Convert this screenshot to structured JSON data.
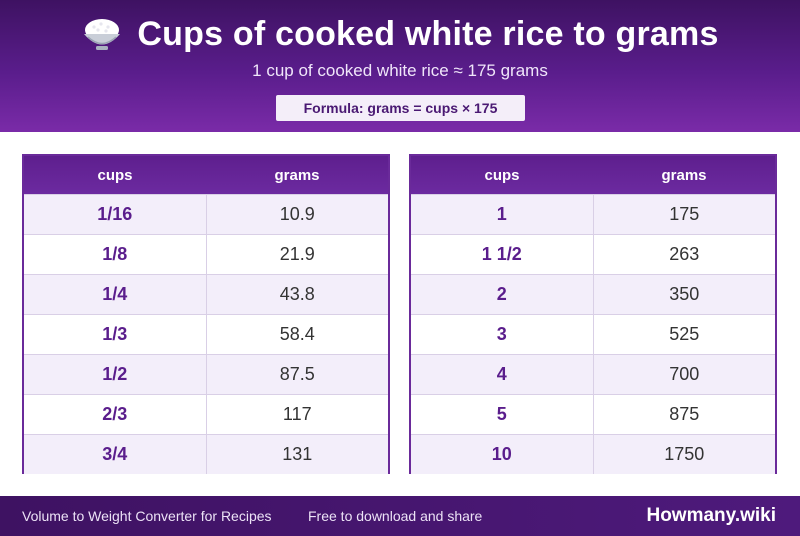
{
  "header": {
    "icon": "rice-bowl-icon",
    "title": "Cups of cooked white rice to grams",
    "subtitle": "1 cup of cooked white rice ≈ 175 grams",
    "formula": "Formula: grams = cups × 175"
  },
  "tables": [
    {
      "col1": "cups",
      "col2": "grams",
      "rows": [
        {
          "cups": "1/16",
          "grams": "10.9"
        },
        {
          "cups": "1/8",
          "grams": "21.9"
        },
        {
          "cups": "1/4",
          "grams": "43.8"
        },
        {
          "cups": "1/3",
          "grams": "58.4"
        },
        {
          "cups": "1/2",
          "grams": "87.5"
        },
        {
          "cups": "2/3",
          "grams": "117"
        },
        {
          "cups": "3/4",
          "grams": "131"
        }
      ]
    },
    {
      "col1": "cups",
      "col2": "grams",
      "rows": [
        {
          "cups": "1",
          "grams": "175"
        },
        {
          "cups": "1 1/2",
          "grams": "263"
        },
        {
          "cups": "2",
          "grams": "350"
        },
        {
          "cups": "3",
          "grams": "525"
        },
        {
          "cups": "4",
          "grams": "700"
        },
        {
          "cups": "5",
          "grams": "875"
        },
        {
          "cups": "10",
          "grams": "1750"
        }
      ]
    }
  ],
  "footer": {
    "left_text": "Volume to Weight Converter for Recipes",
    "middle_text": "Free to download and share",
    "brand": "Howmany.wiki"
  },
  "colors": {
    "primary": "#5a1d8c",
    "accent": "#7a2ba8",
    "row_alt": "#f3eefa"
  }
}
